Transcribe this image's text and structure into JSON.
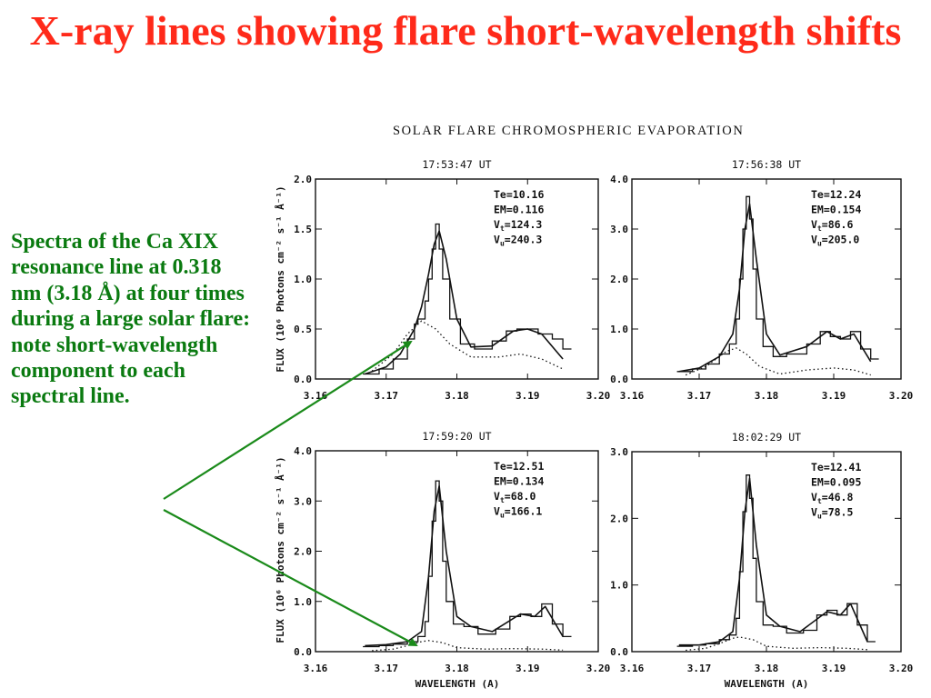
{
  "slide": {
    "title": "X-ray lines showing flare short-wavelength shifts",
    "caption": "Spectra of the Ca XIX resonance line at 0.318 nm (3.18 Å) at four times during a large solar flare: note short-wavelength component to each spectral line."
  },
  "figure": {
    "suptitle": "SOLAR FLARE CHROMOSPHERIC EVAPORATION",
    "ylabel": "FLUX (10⁶ Photons cm⁻² s⁻¹ Å⁻¹)",
    "xlabel": "WAVELENGTH (A)"
  },
  "colors": {
    "title": "#ff2a1a",
    "caption": "#0a7a10",
    "arrow": "#1a8a1a",
    "ink": "#111111"
  },
  "chart_data": [
    {
      "type": "line",
      "title": "17:53:47 UT",
      "xlim": [
        3.16,
        3.2
      ],
      "ylim": [
        0.0,
        2.0
      ],
      "xticks": [
        "3.16",
        "3.17",
        "3.18",
        "3.19",
        "3.20"
      ],
      "yticks": [
        "0.0",
        "0.5",
        "1.0",
        "1.5",
        "2.0"
      ],
      "annotations": [
        "Te=10.16",
        "EM=0.116",
        "Vt=124.3",
        "Vu=240.3"
      ],
      "series": [
        {
          "style": "histogram",
          "x": [
            3.1667,
            3.169,
            3.171,
            3.173,
            3.174,
            3.1745,
            3.1755,
            3.176,
            3.1765,
            3.177,
            3.1775,
            3.178,
            3.179,
            3.1805,
            3.1825,
            3.185,
            3.187,
            3.1885,
            3.19,
            3.1915,
            3.1935,
            3.195
          ],
          "y": [
            0.05,
            0.1,
            0.2,
            0.4,
            0.55,
            0.6,
            0.78,
            1.0,
            1.3,
            1.55,
            1.3,
            1.0,
            0.6,
            0.35,
            0.3,
            0.38,
            0.48,
            0.5,
            0.5,
            0.45,
            0.4,
            0.3
          ]
        },
        {
          "style": "solid",
          "x": [
            3.167,
            3.17,
            3.172,
            3.174,
            3.175,
            3.176,
            3.1768,
            3.1775,
            3.1785,
            3.18,
            3.182,
            3.185,
            3.188,
            3.19,
            3.192,
            3.195
          ],
          "y": [
            0.05,
            0.12,
            0.25,
            0.5,
            0.72,
            1.05,
            1.35,
            1.48,
            1.2,
            0.6,
            0.32,
            0.33,
            0.48,
            0.5,
            0.45,
            0.2
          ]
        },
        {
          "style": "dotted",
          "x": [
            3.168,
            3.171,
            3.173,
            3.175,
            3.177,
            3.179,
            3.182,
            3.186,
            3.189,
            3.192,
            3.195
          ],
          "y": [
            0.08,
            0.25,
            0.45,
            0.58,
            0.5,
            0.35,
            0.22,
            0.22,
            0.25,
            0.2,
            0.1
          ]
        }
      ]
    },
    {
      "type": "line",
      "title": "17:56:38 UT",
      "xlim": [
        3.16,
        3.2
      ],
      "ylim": [
        0.0,
        4.0
      ],
      "xticks": [
        "3.16",
        "3.17",
        "3.18",
        "3.19",
        "3.20"
      ],
      "yticks": [
        "0.0",
        "1.0",
        "2.0",
        "3.0",
        "4.0"
      ],
      "annotations": [
        "Te=12.24",
        "EM=0.154",
        "Vt=86.6",
        "Vu=205.0"
      ],
      "series": [
        {
          "style": "histogram",
          "x": [
            3.1667,
            3.169,
            3.171,
            3.173,
            3.1745,
            3.1755,
            3.176,
            3.1765,
            3.177,
            3.1775,
            3.178,
            3.1785,
            3.1795,
            3.181,
            3.183,
            3.186,
            3.188,
            3.1895,
            3.191,
            3.1925,
            3.194,
            3.1955
          ],
          "y": [
            0.15,
            0.2,
            0.3,
            0.5,
            0.7,
            1.2,
            2.0,
            3.0,
            3.65,
            3.2,
            2.2,
            1.2,
            0.65,
            0.45,
            0.5,
            0.7,
            0.95,
            0.85,
            0.8,
            0.95,
            0.6,
            0.4
          ]
        },
        {
          "style": "solid",
          "x": [
            3.167,
            3.17,
            3.173,
            3.175,
            3.176,
            3.1768,
            3.1775,
            3.1785,
            3.18,
            3.182,
            3.186,
            3.189,
            3.191,
            3.193,
            3.1955
          ],
          "y": [
            0.15,
            0.22,
            0.45,
            0.9,
            1.8,
            3.0,
            3.5,
            2.4,
            0.9,
            0.48,
            0.65,
            0.95,
            0.8,
            0.9,
            0.35
          ]
        },
        {
          "style": "dotted",
          "x": [
            3.168,
            3.171,
            3.174,
            3.1755,
            3.177,
            3.179,
            3.182,
            3.186,
            3.19,
            3.193,
            3.1955
          ],
          "y": [
            0.08,
            0.25,
            0.55,
            0.62,
            0.5,
            0.25,
            0.1,
            0.18,
            0.22,
            0.18,
            0.08
          ]
        }
      ]
    },
    {
      "type": "line",
      "title": "17:59:20 UT",
      "xlim": [
        3.16,
        3.2
      ],
      "ylim": [
        0.0,
        4.0
      ],
      "xticks": [
        "3.16",
        "3.17",
        "3.18",
        "3.19",
        "3.20"
      ],
      "yticks": [
        "0.0",
        "1.0",
        "2.0",
        "3.0",
        "4.0"
      ],
      "annotations": [
        "Te=12.51",
        "EM=0.134",
        "Vt=68.0",
        "Vu=166.1"
      ],
      "series": [
        {
          "style": "histogram",
          "x": [
            3.1667,
            3.169,
            3.171,
            3.173,
            3.1745,
            3.1755,
            3.176,
            3.1765,
            3.177,
            3.1775,
            3.178,
            3.1785,
            3.1795,
            3.181,
            3.183,
            3.1855,
            3.1875,
            3.189,
            3.1905,
            3.192,
            3.1935,
            3.195
          ],
          "y": [
            0.1,
            0.12,
            0.15,
            0.2,
            0.3,
            0.6,
            1.5,
            2.6,
            3.4,
            3.0,
            1.8,
            1.0,
            0.55,
            0.5,
            0.35,
            0.45,
            0.7,
            0.75,
            0.7,
            0.95,
            0.55,
            0.3
          ]
        },
        {
          "style": "solid",
          "x": [
            3.167,
            3.17,
            3.173,
            3.175,
            3.176,
            3.1768,
            3.1775,
            3.1785,
            3.18,
            3.182,
            3.185,
            3.189,
            3.191,
            3.1925,
            3.195
          ],
          "y": [
            0.12,
            0.14,
            0.2,
            0.4,
            1.5,
            2.8,
            3.3,
            2.0,
            0.7,
            0.5,
            0.4,
            0.75,
            0.7,
            0.9,
            0.3
          ]
        },
        {
          "style": "dotted",
          "x": [
            3.168,
            3.171,
            3.173,
            3.175,
            3.176,
            3.178,
            3.18,
            3.184,
            3.188,
            3.192,
            3.195
          ],
          "y": [
            0.02,
            0.05,
            0.12,
            0.2,
            0.22,
            0.18,
            0.08,
            0.05,
            0.06,
            0.05,
            0.03
          ]
        }
      ]
    },
    {
      "type": "line",
      "title": "18:02:29 UT",
      "xlim": [
        3.16,
        3.2
      ],
      "ylim": [
        0.0,
        3.0
      ],
      "xticks": [
        "3.16",
        "3.17",
        "3.18",
        "3.19",
        "3.20"
      ],
      "yticks": [
        "0.0",
        "1.0",
        "2.0",
        "3.0"
      ],
      "annotations": [
        "Te=12.41",
        "EM=0.095",
        "Vt=46.8",
        "Vu=78.5"
      ],
      "series": [
        {
          "style": "histogram",
          "x": [
            3.1667,
            3.169,
            3.171,
            3.173,
            3.1745,
            3.1755,
            3.176,
            3.1765,
            3.177,
            3.1775,
            3.178,
            3.1785,
            3.1795,
            3.181,
            3.183,
            3.1855,
            3.1875,
            3.189,
            3.1905,
            3.192,
            3.1935,
            3.195
          ],
          "y": [
            0.08,
            0.1,
            0.12,
            0.18,
            0.25,
            0.5,
            1.2,
            2.1,
            2.65,
            2.3,
            1.4,
            0.75,
            0.4,
            0.38,
            0.28,
            0.32,
            0.55,
            0.62,
            0.55,
            0.72,
            0.4,
            0.15
          ]
        },
        {
          "style": "solid",
          "x": [
            3.167,
            3.17,
            3.173,
            3.175,
            3.176,
            3.1768,
            3.1775,
            3.1785,
            3.18,
            3.182,
            3.185,
            3.189,
            3.191,
            3.1925,
            3.195
          ],
          "y": [
            0.1,
            0.1,
            0.15,
            0.3,
            1.1,
            2.1,
            2.6,
            1.6,
            0.55,
            0.38,
            0.3,
            0.6,
            0.55,
            0.72,
            0.15
          ]
        },
        {
          "style": "dotted",
          "x": [
            3.168,
            3.171,
            3.173,
            3.175,
            3.176,
            3.178,
            3.18,
            3.184,
            3.188,
            3.192,
            3.195
          ],
          "y": [
            0.02,
            0.05,
            0.12,
            0.2,
            0.22,
            0.18,
            0.08,
            0.05,
            0.06,
            0.05,
            0.03
          ]
        }
      ]
    }
  ]
}
